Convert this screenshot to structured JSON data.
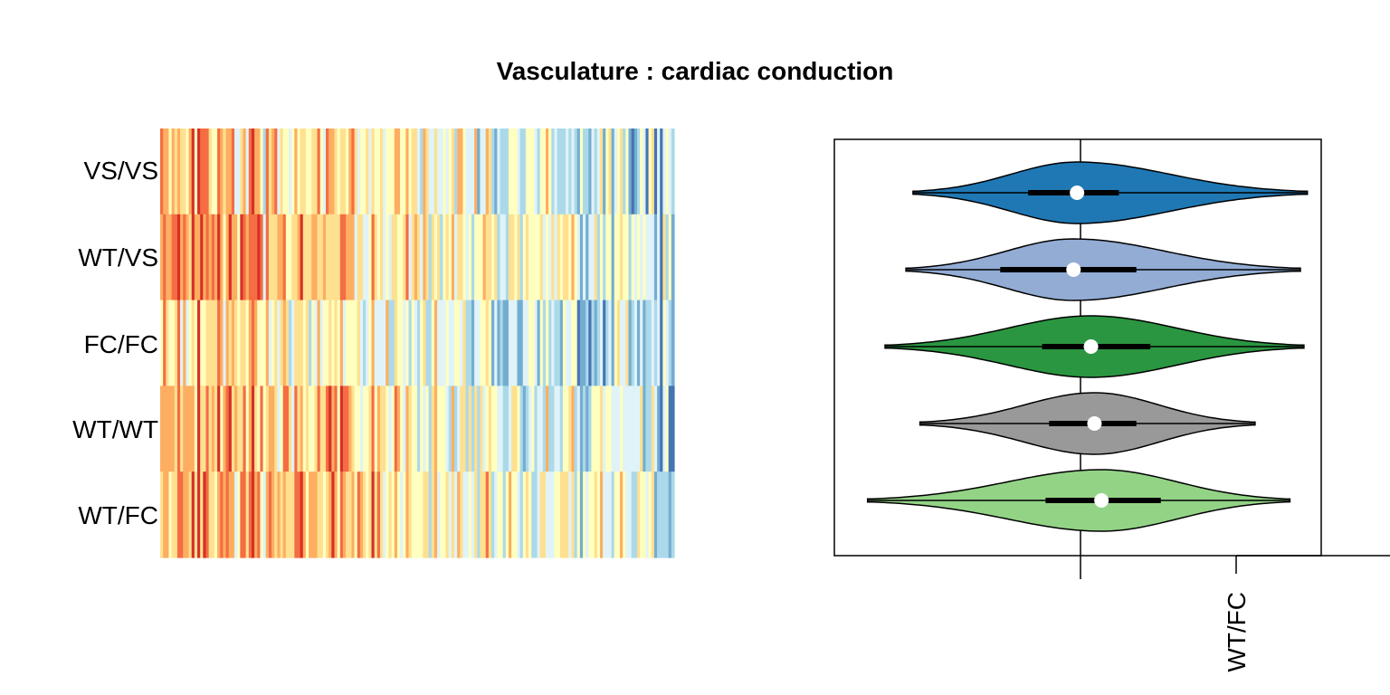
{
  "chart_data": [
    {
      "type": "heatmap",
      "title": "Vasculature : cardiac conduction",
      "rows": [
        "VS/VS",
        "WT/VS",
        "FC/FC",
        "WT/WT",
        "WT/FC"
      ],
      "n_columns": 180,
      "colormap": [
        "#d73027",
        "#f46d43",
        "#fdae61",
        "#fee090",
        "#ffffbf",
        "#e0f3f8",
        "#abd9e9",
        "#74add1",
        "#4575b4"
      ],
      "row_color_means": [
        0.42,
        0.37,
        0.48,
        0.42,
        0.36
      ],
      "column_trend": "warm (left) to cool (right)"
    },
    {
      "type": "violin",
      "groups": [
        {
          "name": "VS/VS",
          "color": "#1f78b4",
          "min": -0.48,
          "q1": -0.15,
          "median": -0.01,
          "q3": 0.11,
          "max": 0.65,
          "mode_width": 0.4
        },
        {
          "name": "WT/VS",
          "color": "#92acd4",
          "min": -0.5,
          "q1": -0.23,
          "median": -0.02,
          "q3": 0.16,
          "max": 0.63,
          "mode_width": 0.4
        },
        {
          "name": "FC/FC",
          "color": "#2b9641",
          "min": -0.56,
          "q1": -0.11,
          "median": 0.03,
          "q3": 0.2,
          "max": 0.64,
          "mode_width": 0.4
        },
        {
          "name": "WT/WT",
          "color": "#999999",
          "min": -0.46,
          "q1": -0.09,
          "median": 0.04,
          "q3": 0.16,
          "max": 0.5,
          "mode_width": 0.4
        },
        {
          "name": "WT/FC",
          "color": "#93d386",
          "min": -0.61,
          "q1": -0.1,
          "median": 0.06,
          "q3": 0.23,
          "max": 0.6,
          "mode_width": 0.4
        }
      ],
      "xlim": [
        -0.7,
        0.7
      ],
      "reference_line": 0,
      "ticks": [
        {
          "value": 0.45,
          "label": "WT/FC"
        }
      ]
    }
  ]
}
